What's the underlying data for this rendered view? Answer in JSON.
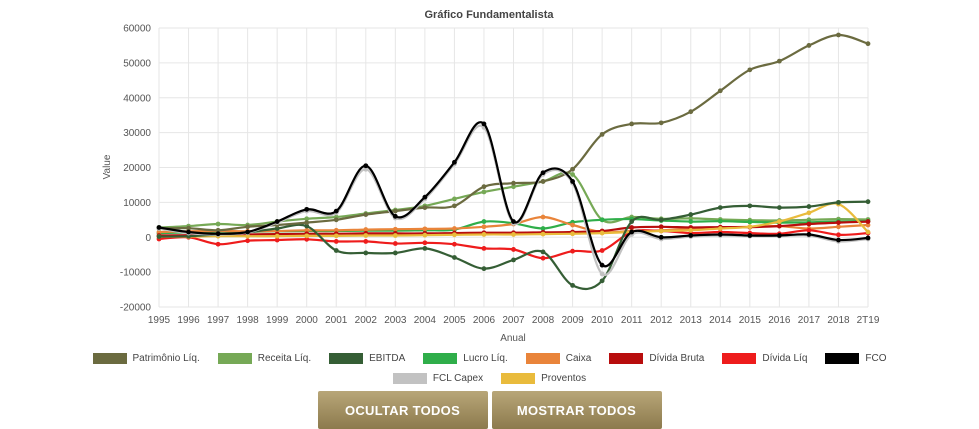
{
  "buttons": {
    "hide_all": "OCULTAR TODOS",
    "show_all": "MOSTRAR TODOS"
  },
  "chart_data": {
    "type": "line",
    "title": "Gráfico Fundamentalista",
    "xlabel": "Anual",
    "ylabel": "Value",
    "ylim": [
      -20000,
      60000
    ],
    "yticks": [
      -20000,
      -10000,
      0,
      10000,
      20000,
      30000,
      40000,
      50000,
      60000
    ],
    "grid": true,
    "legend_position": "bottom",
    "categories": [
      "1995",
      "1996",
      "1997",
      "1998",
      "1999",
      "2000",
      "2001",
      "2002",
      "2003",
      "2004",
      "2005",
      "2006",
      "2007",
      "2008",
      "2009",
      "2010",
      "2011",
      "2012",
      "2013",
      "2014",
      "2015",
      "2016",
      "2017",
      "2018",
      "2T19"
    ],
    "series": [
      {
        "name": "Patrimônio Líq.",
        "color": "#6b6b40",
        "values": [
          2500,
          2600,
          2000,
          3000,
          3500,
          4200,
          5000,
          6500,
          7500,
          8500,
          9000,
          14500,
          15500,
          16000,
          19500,
          29500,
          32500,
          32800,
          36000,
          42000,
          48000,
          50500,
          55000,
          58000,
          55500
        ]
      },
      {
        "name": "Receita Líq.",
        "color": "#76a956",
        "values": [
          2800,
          3200,
          3800,
          3500,
          4500,
          5300,
          5800,
          6800,
          7800,
          9000,
          11000,
          13000,
          14500,
          16000,
          18000,
          5000,
          5800,
          5300,
          5400,
          5100,
          4900,
          4800,
          5000,
          5200,
          5100
        ]
      },
      {
        "name": "EBITDA",
        "color": "#355e35",
        "values": [
          200,
          300,
          800,
          1400,
          2500,
          3200,
          -3800,
          -4500,
          -4500,
          -3200,
          -5800,
          -9000,
          -6500,
          -4200,
          -13800,
          -12500,
          4500,
          5000,
          6500,
          8500,
          9000,
          8500,
          8800,
          10000,
          10200
        ]
      },
      {
        "name": "Lucro Líq.",
        "color": "#2fae4a",
        "values": [
          1200,
          1400,
          1600,
          1600,
          1700,
          1800,
          1800,
          1900,
          1900,
          2000,
          2200,
          4500,
          4000,
          2500,
          4300,
          5000,
          5200,
          4800,
          4500,
          4600,
          4400,
          4200,
          4300,
          4500,
          4600
        ]
      },
      {
        "name": "Caixa",
        "color": "#e9843a",
        "values": [
          1500,
          1700,
          1800,
          1700,
          1800,
          2000,
          2000,
          2200,
          2300,
          2400,
          2500,
          3000,
          3800,
          5800,
          3500,
          1500,
          1800,
          2000,
          2500,
          2800,
          3000,
          3200,
          2500,
          3000,
          3500
        ]
      },
      {
        "name": "Dívida Bruta",
        "color": "#b80d0d",
        "values": [
          500,
          600,
          600,
          800,
          900,
          1000,
          1000,
          1100,
          1100,
          1100,
          1200,
          1300,
          1300,
          1400,
          1500,
          1800,
          2800,
          3000,
          2800,
          2900,
          2900,
          3200,
          3800,
          4200,
          4500
        ]
      },
      {
        "name": "Dívida Líq",
        "color": "#ee1c1c",
        "values": [
          -500,
          0,
          -2000,
          -1000,
          -800,
          -600,
          -1200,
          -1200,
          -1800,
          -1600,
          -2000,
          -3200,
          -3500,
          -6000,
          -4000,
          -3800,
          1500,
          1800,
          1200,
          1500,
          1200,
          1000,
          2000,
          700,
          1200
        ]
      },
      {
        "name": "FCO",
        "color": "#000000",
        "values": [
          2800,
          1500,
          1000,
          1500,
          4500,
          8000,
          7500,
          20500,
          6000,
          11500,
          21500,
          32500,
          4500,
          18500,
          16000,
          -8000,
          1500,
          0,
          500,
          800,
          500,
          500,
          800,
          -800,
          -200
        ]
      },
      {
        "name": "FCL Capex",
        "color": "#c2c2c2",
        "values": [
          2500,
          1200,
          800,
          1300,
          4200,
          7500,
          7000,
          19500,
          5500,
          11000,
          21000,
          31500,
          4000,
          18000,
          15500,
          -10500,
          800,
          -500,
          200,
          500,
          300,
          300,
          500,
          -1200,
          -500
        ]
      },
      {
        "name": "Proventos",
        "color": "#e9bb3c",
        "values": [
          200,
          200,
          300,
          300,
          300,
          400,
          400,
          500,
          500,
          600,
          700,
          800,
          800,
          900,
          1000,
          1200,
          1500,
          1800,
          2000,
          2500,
          3000,
          4500,
          7000,
          9500,
          1500
        ]
      }
    ]
  }
}
